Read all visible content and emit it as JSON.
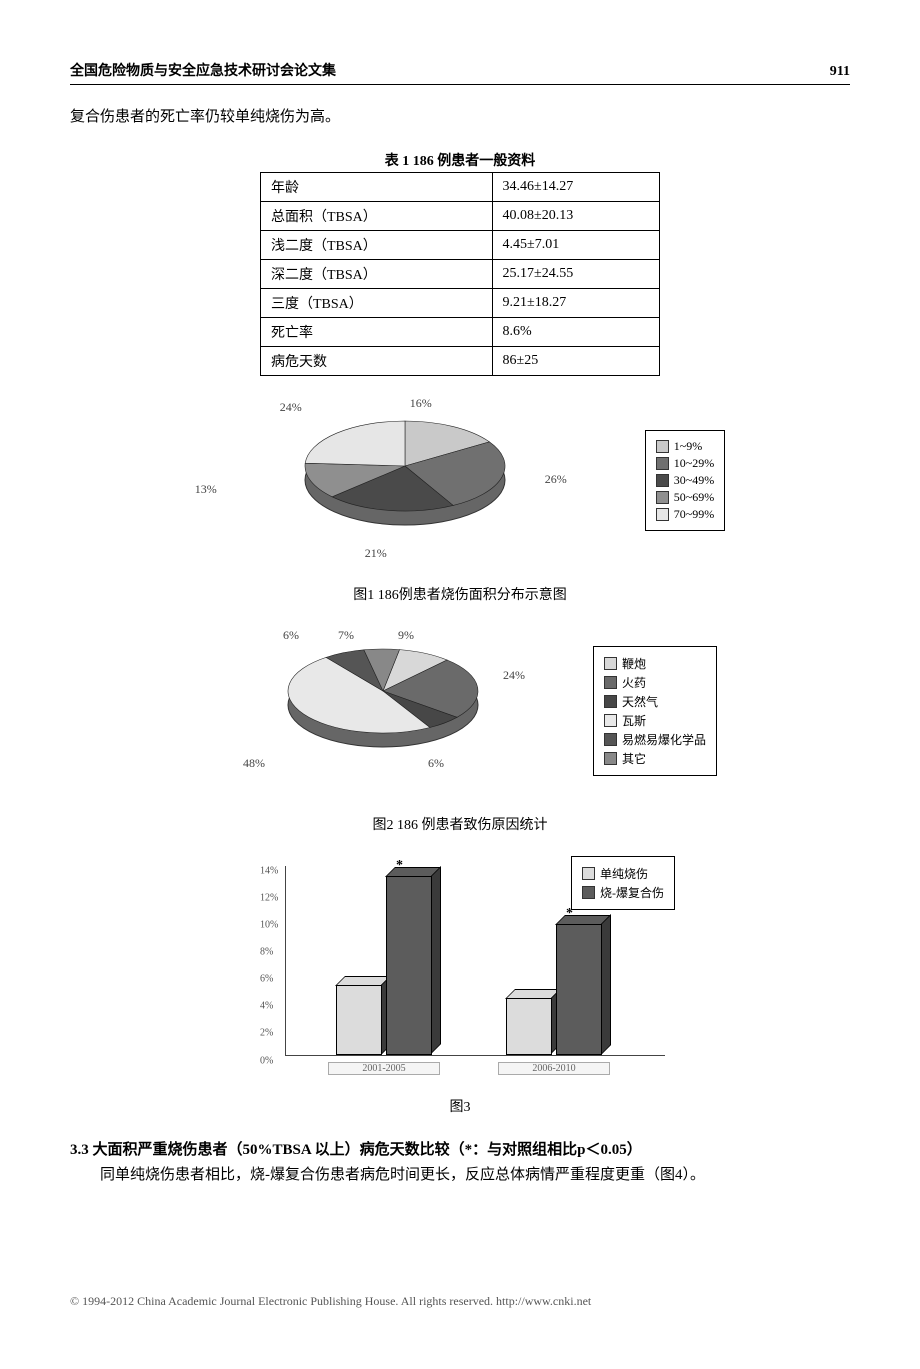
{
  "header": {
    "left": "全国危险物质与安全应急技术研讨会论文集",
    "page": "911"
  },
  "para1": "复合伤患者的死亡率仍较单纯烧伤为高。",
  "table1": {
    "caption": "表 1  186 例患者一般资料",
    "rows": [
      [
        "年龄",
        "34.46±14.27"
      ],
      [
        "总面积（TBSA）",
        "40.08±20.13"
      ],
      [
        "浅二度（TBSA）",
        "4.45±7.01"
      ],
      [
        "深二度（TBSA）",
        "25.17±24.55"
      ],
      [
        "三度（TBSA）",
        "9.21±18.27"
      ],
      [
        "死亡率",
        "8.6%"
      ],
      [
        "病危天数",
        "86±25"
      ]
    ]
  },
  "fig1": {
    "caption": "图1  186例患者烧伤面积分布示意图",
    "slices": [
      {
        "label": "1~9%",
        "value": 16,
        "color": "#c9c9c9",
        "text": "16%"
      },
      {
        "label": "10~29%",
        "value": 26,
        "color": "#707070",
        "text": "26%"
      },
      {
        "label": "30~49%",
        "value": 21,
        "color": "#4a4a4a",
        "text": "21%"
      },
      {
        "label": "50~69%",
        "value": 13,
        "color": "#8f8f8f",
        "text": "13%"
      },
      {
        "label": "70~99%",
        "value": 24,
        "color": "#e6e6e6",
        "text": "24%"
      }
    ],
    "background": "#f0f0f0"
  },
  "fig2": {
    "caption": "图2  186 例患者致伤原因统计",
    "slices": [
      {
        "label": "鞭炮",
        "value": 9,
        "color": "#d8d8d8",
        "text": "9%"
      },
      {
        "label": "火药",
        "value": 24,
        "color": "#6a6a6a",
        "text": "24%"
      },
      {
        "label": "天然气",
        "value": 6,
        "color": "#474747",
        "text": "6%"
      },
      {
        "label": "瓦斯",
        "value": 48,
        "color": "#e8e8e8",
        "text": "48%"
      },
      {
        "label": "易燃易爆化学品",
        "value": 7,
        "color": "#555555",
        "text": "7%"
      },
      {
        "label": "其它",
        "value": 6,
        "color": "#888888",
        "text": "6%"
      }
    ]
  },
  "fig3": {
    "caption": "图3",
    "legend": [
      "单纯烧伤",
      "烧-爆复合伤"
    ],
    "legend_colors": [
      "#dcdcdc",
      "#5c5c5c"
    ],
    "ymax": 14,
    "ystep": 2,
    "categories": [
      "2001-2005",
      "2006-2010"
    ],
    "series": [
      {
        "name": "单纯烧伤",
        "color": "#dcdcdc",
        "values": [
          5,
          4
        ]
      },
      {
        "name": "烧-爆复合伤",
        "color": "#5c5c5c",
        "values": [
          13,
          9.5
        ]
      }
    ],
    "stars": [
      true,
      true
    ]
  },
  "section33": {
    "title": "3.3  大面积严重烧伤患者（50%TBSA 以上）病危天数比较（*：与对照组相比p＜0.05）",
    "body": "同单纯烧伤患者相比，烧-爆复合伤患者病危时间更长，反应总体病情严重程度更重（图4）。"
  },
  "footer": "© 1994-2012 China Academic Journal Electronic Publishing House. All rights reserved.    http://www.cnki.net"
}
